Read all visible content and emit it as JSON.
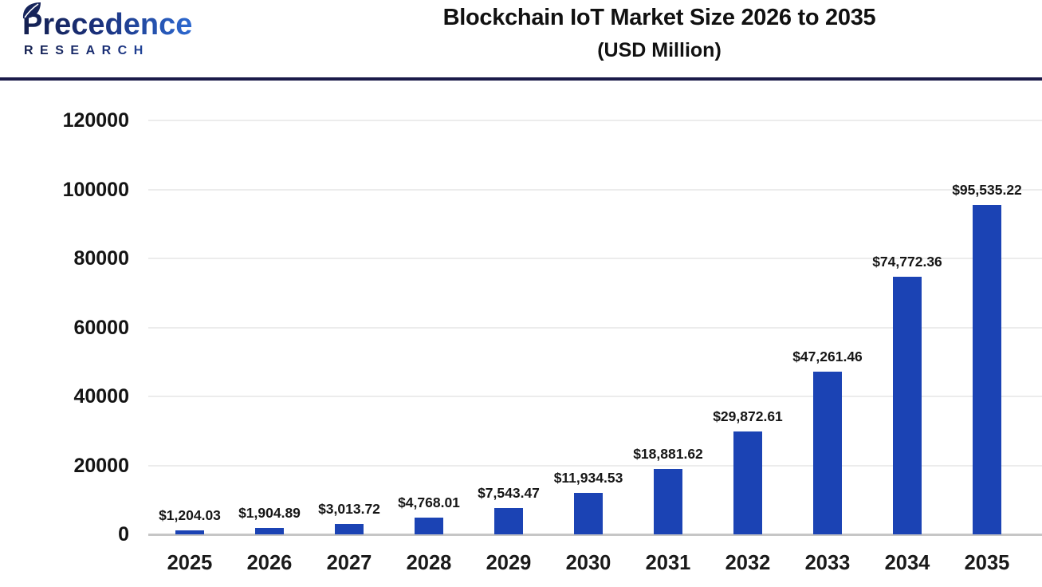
{
  "logo": {
    "brand": "Precedence",
    "sub": "RESEARCH",
    "leaf_icon_color": "#16245a",
    "gradient_start": "#131f4e",
    "gradient_end": "#2d6bd4"
  },
  "header": {
    "title_line1": "Blockchain IoT Market Size 2026 to 2035",
    "title_line2": "(USD Million)",
    "divider_color": "#1b1b4a"
  },
  "chart_data": {
    "type": "bar",
    "title": "Blockchain IoT Market Size 2026 to 2035 (USD Million)",
    "xlabel": "",
    "ylabel": "",
    "categories": [
      "2025",
      "2026",
      "2027",
      "2028",
      "2029",
      "2030",
      "2031",
      "2032",
      "2033",
      "2034",
      "2035"
    ],
    "values": [
      1204.03,
      1904.89,
      3013.72,
      4768.01,
      7543.47,
      11934.53,
      18881.62,
      29872.61,
      47261.46,
      74772.36,
      95535.22
    ],
    "value_labels": [
      "$1,204.03",
      "$1,904.89",
      "$3,013.72",
      "$4,768.01",
      "$7,543.47",
      "$11,934.53",
      "$18,881.62",
      "$29,872.61",
      "$47,261.46",
      "$74,772.36",
      "$95,535.22"
    ],
    "ylim": [
      0,
      120000
    ],
    "yticks": [
      0,
      20000,
      40000,
      60000,
      80000,
      100000,
      120000
    ],
    "ytick_labels": [
      "0",
      "20000",
      "40000",
      "60000",
      "80000",
      "100000",
      "120000"
    ],
    "bar_color": "#1b43b4",
    "grid": "horizontal",
    "gridline_color": "#ececec",
    "baseline_color": "#c6c6c6",
    "legend": "none"
  }
}
